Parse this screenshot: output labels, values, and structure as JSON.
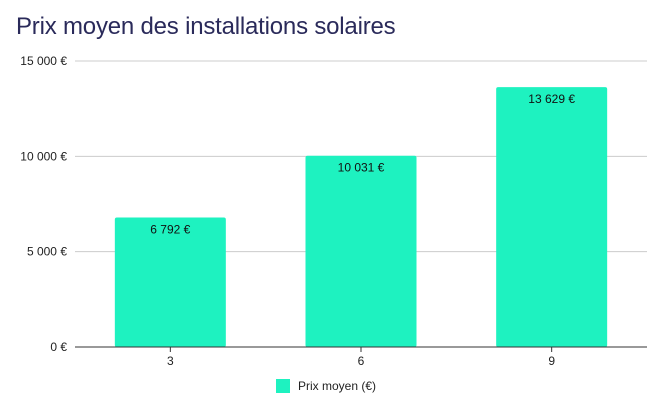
{
  "chart_data": {
    "type": "bar",
    "title": "Prix moyen des installations solaires",
    "xlabel": "",
    "ylabel": "",
    "categories": [
      "3",
      "6",
      "9"
    ],
    "series": [
      {
        "name": "Prix moyen (€)",
        "values": [
          6792,
          10031,
          13629
        ],
        "value_labels": [
          "6 792 €",
          "10 031 €",
          "13 629 €"
        ],
        "color": "#1ef2c0"
      }
    ],
    "ylim": [
      0,
      15000
    ],
    "yticks": [
      0,
      5000,
      10000,
      15000
    ],
    "ytick_labels": [
      "0 €",
      "5 000 €",
      "10 000 €",
      "15 000 €"
    ],
    "grid": true,
    "legend_position": "bottom"
  }
}
